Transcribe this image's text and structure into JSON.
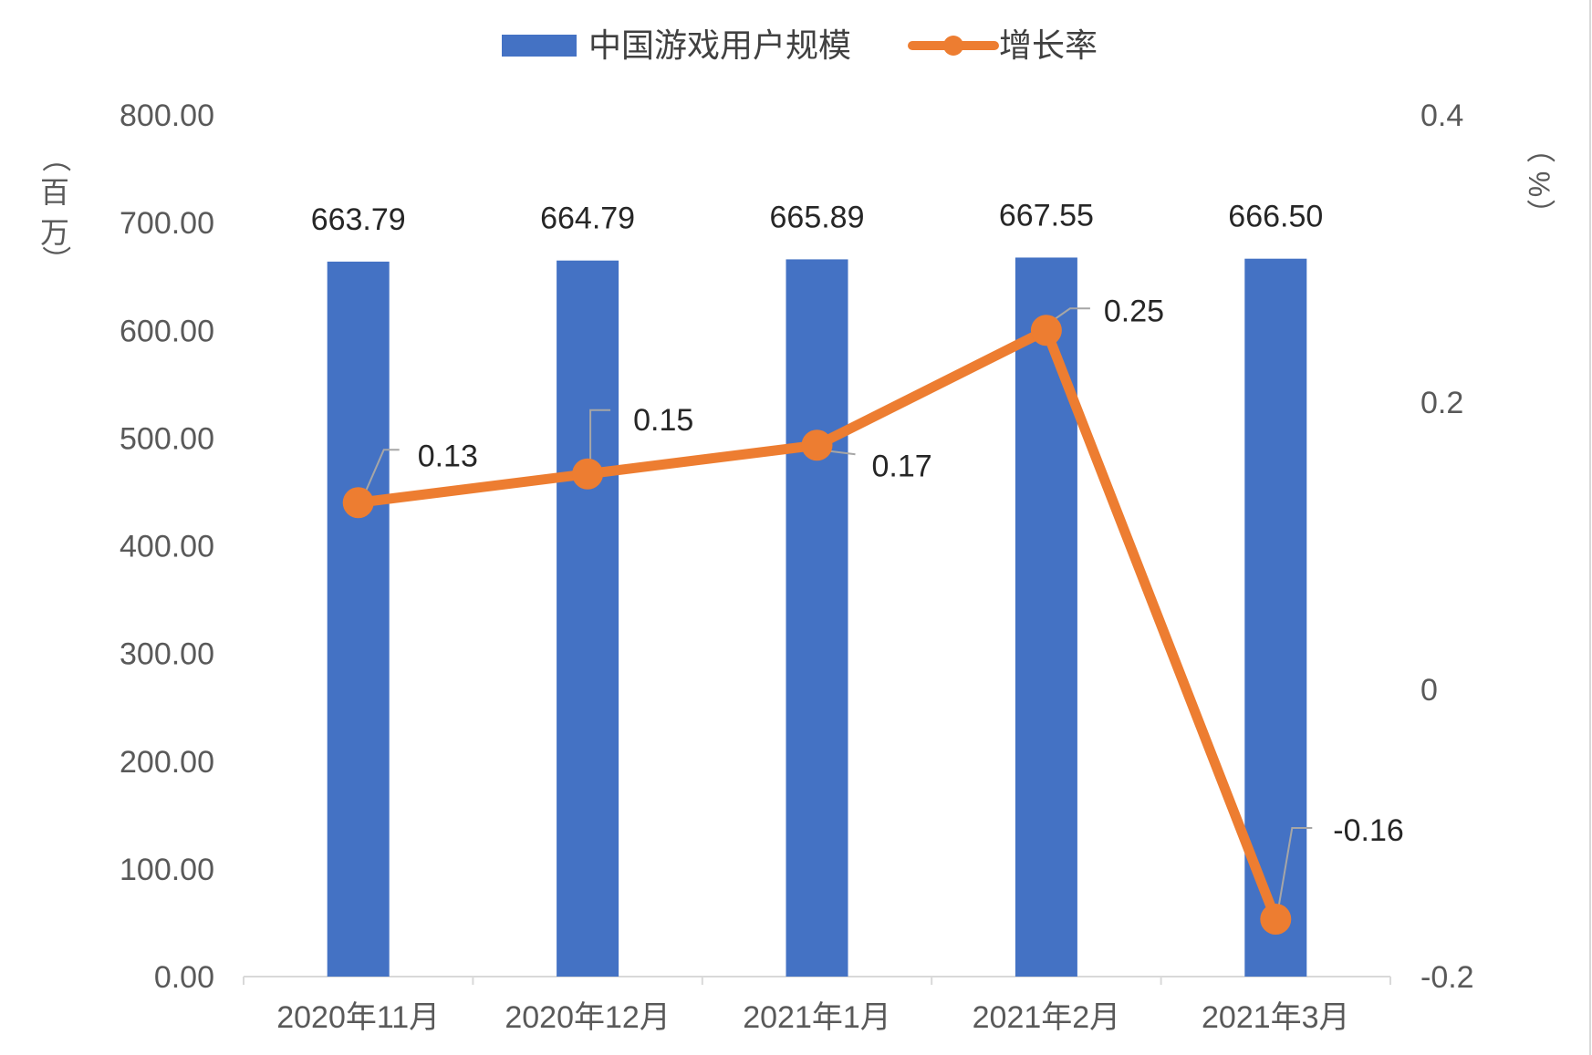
{
  "chart_data": {
    "type": "bar",
    "categories": [
      "2020年11月",
      "2020年12月",
      "2021年1月",
      "2021年2月",
      "2021年3月"
    ],
    "series": [
      {
        "name": "中国游戏用户规模",
        "type": "bar",
        "axis": "left",
        "values": [
          663.79,
          664.79,
          665.89,
          667.55,
          666.5
        ],
        "labels": [
          "663.79",
          "664.79",
          "665.89",
          "667.55",
          "666.50"
        ],
        "color": "#4472C4"
      },
      {
        "name": "增长率",
        "type": "line",
        "axis": "right",
        "values": [
          0.13,
          0.15,
          0.17,
          0.25,
          -0.16
        ],
        "labels": [
          "0.13",
          "0.15",
          "0.17",
          "0.25",
          "-0.16"
        ],
        "color": "#ED7D31"
      }
    ],
    "left_axis": {
      "ylim": [
        0,
        800
      ],
      "ticks": [
        "0.00",
        "100.00",
        "200.00",
        "300.00",
        "400.00",
        "500.00",
        "600.00",
        "700.00",
        "800.00"
      ],
      "unit_label": [
        "（",
        "百",
        "万",
        "）"
      ]
    },
    "right_axis": {
      "ylim": [
        -0.2,
        0.4
      ],
      "ticks": [
        "-0.2",
        "0",
        "0.2",
        "0.4"
      ],
      "unit_label": [
        "（",
        "%",
        "）"
      ]
    },
    "legend_position": "top",
    "grid": false
  }
}
